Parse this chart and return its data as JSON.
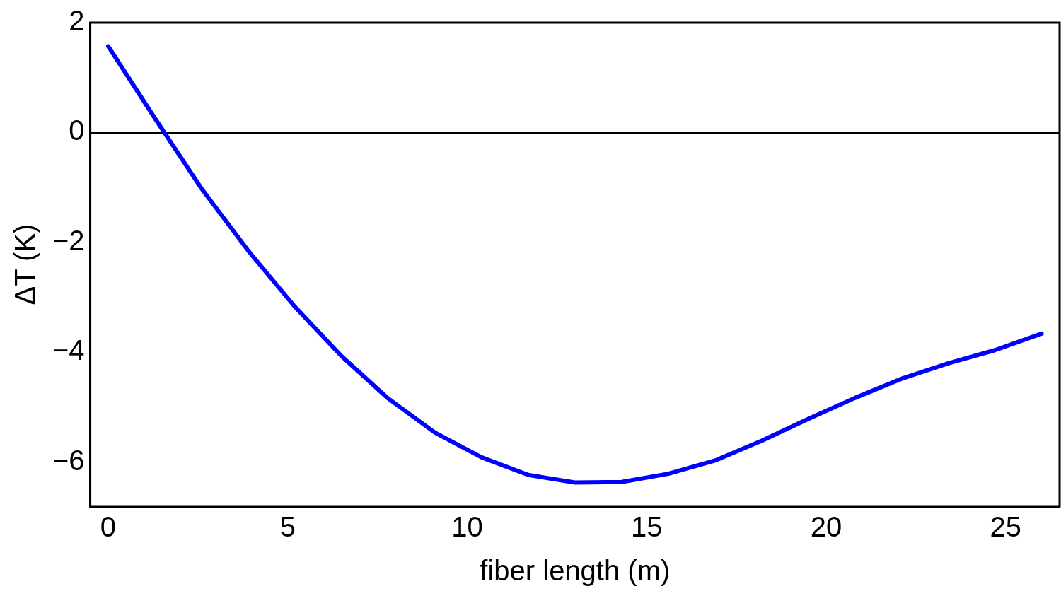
{
  "chart_data": {
    "type": "line",
    "xlabel": "fiber length (m)",
    "ylabel": "ΔT (K)",
    "x": [
      0,
      1.3,
      2.6,
      3.9,
      5.2,
      6.5,
      7.8,
      9.1,
      10.4,
      11.7,
      13,
      14.3,
      15.6,
      16.9,
      18.2,
      19.5,
      20.8,
      22.1,
      23.4,
      24.7,
      26
    ],
    "series": [
      {
        "color": "#0000ff",
        "values": [
          1.57,
          0.26,
          -1.02,
          -2.15,
          -3.17,
          -4.07,
          -4.84,
          -5.46,
          -5.91,
          -6.23,
          -6.37,
          -6.36,
          -6.21,
          -5.97,
          -5.61,
          -5.21,
          -4.83,
          -4.48,
          -4.2,
          -3.96,
          -3.66
        ]
      }
    ],
    "xlim": [
      -0.5,
      26.5
    ],
    "ylim": [
      -6.8,
      2
    ],
    "xticks": [
      0,
      5,
      10,
      15,
      20,
      25
    ],
    "yticks": [
      2,
      0,
      {
        "value": -2,
        "label": "−2"
      },
      {
        "value": -4,
        "label": "−4"
      },
      {
        "value": -6,
        "label": "−6"
      }
    ],
    "ref_lines": [
      {
        "axis": "y",
        "value": 0,
        "color": "#000000"
      }
    ],
    "grid": false,
    "legend": false,
    "marker": "none",
    "line_style": "solid"
  }
}
